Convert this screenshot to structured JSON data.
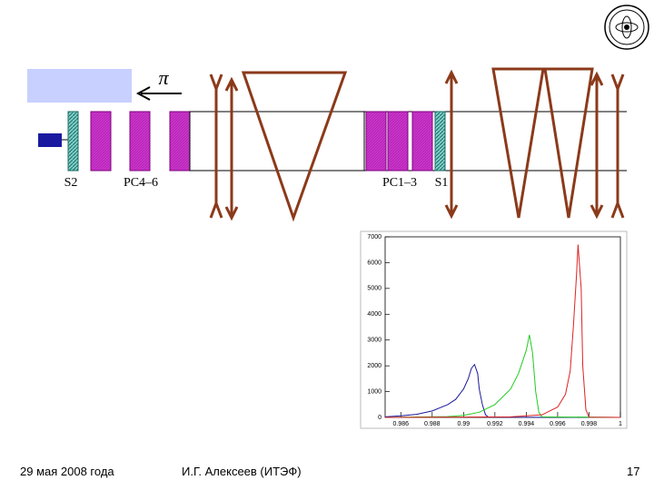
{
  "diagram": {
    "beam_label": "π",
    "labels": [
      "S2",
      "PC4–6",
      "PC1–3",
      "S1"
    ]
  },
  "footer": {
    "date": "29 мая 2008 года",
    "author": "И.Г. Алексеев (ИТЭФ)",
    "page": "17"
  },
  "chart_data": {
    "type": "line",
    "xlim": [
      0.985,
      1.0
    ],
    "xticks": [
      0.986,
      0.988,
      0.99,
      0.992,
      0.994,
      0.996,
      0.998,
      1
    ],
    "ylim": [
      0,
      7000
    ],
    "yticks": [
      0,
      1000,
      2000,
      3000,
      4000,
      5000,
      6000,
      7000
    ],
    "series": [
      {
        "color": "#1a1a9a",
        "x": [
          0.985,
          0.986,
          0.987,
          0.988,
          0.989,
          0.9895,
          0.99,
          0.9903,
          0.9905,
          0.9907,
          0.9909,
          0.991,
          0.9912,
          0.9914,
          0.9916,
          0.995,
          1.0
        ],
        "values": [
          20,
          60,
          120,
          250,
          500,
          700,
          1100,
          1500,
          1900,
          2050,
          1700,
          1100,
          500,
          100,
          10,
          5,
          0
        ]
      },
      {
        "color": "#22cc22",
        "x": [
          0.985,
          0.989,
          0.99,
          0.991,
          0.992,
          0.993,
          0.9935,
          0.994,
          0.9942,
          0.9944,
          0.9946,
          0.9948,
          0.995,
          1.0
        ],
        "values": [
          0,
          30,
          80,
          200,
          500,
          1100,
          1700,
          2600,
          3200,
          2500,
          1000,
          200,
          20,
          0
        ]
      },
      {
        "color": "#dd2222",
        "x": [
          0.985,
          0.993,
          0.995,
          0.996,
          0.9965,
          0.9968,
          0.997,
          0.9972,
          0.9973,
          0.9975,
          0.9976,
          0.9978,
          0.998,
          1.0
        ],
        "values": [
          0,
          20,
          100,
          400,
          900,
          1800,
          3500,
          5500,
          6700,
          5000,
          2000,
          300,
          10,
          0
        ]
      }
    ]
  }
}
